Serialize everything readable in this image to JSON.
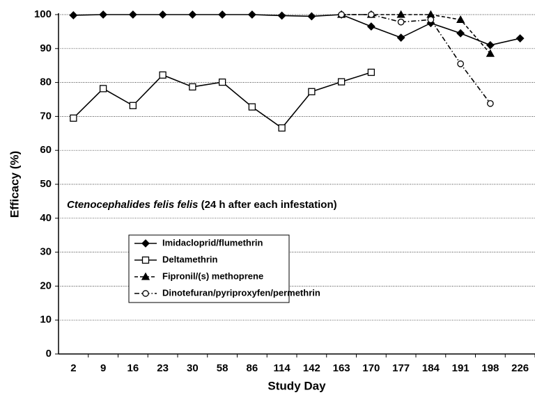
{
  "chart_data": {
    "type": "line",
    "categories": [
      "2",
      "9",
      "16",
      "23",
      "30",
      "58",
      "86",
      "114",
      "142",
      "163",
      "170",
      "177",
      "184",
      "191",
      "198",
      "226"
    ],
    "series": [
      {
        "name": "Imidacloprid/flumethrin",
        "color": "#000000",
        "marker": "diamond",
        "dash": "solid",
        "values": [
          99.8,
          100,
          100,
          100,
          100,
          100,
          100,
          99.7,
          99.5,
          100,
          96.5,
          93.2,
          97.5,
          94.5,
          91,
          93
        ]
      },
      {
        "name": "Deltamethrin",
        "color": "#000000",
        "marker": "square",
        "dash": "solid",
        "values": [
          69.5,
          78.2,
          73.2,
          82.2,
          78.7,
          80.1,
          72.8,
          66.6,
          77.3,
          80.2,
          83,
          null,
          null,
          null,
          null,
          null
        ]
      },
      {
        "name": "Fipronil/(s) methoprene",
        "color": "#000000",
        "marker": "triangle",
        "dash": "dashed",
        "values": [
          null,
          null,
          null,
          null,
          null,
          null,
          null,
          null,
          null,
          100,
          100,
          100,
          100,
          98.5,
          88.5,
          null
        ]
      },
      {
        "name": "Dinotefuran/pyriproxyfen/permethrin",
        "color": "#000000",
        "marker": "circle",
        "dash": "dashdot",
        "values": [
          null,
          null,
          null,
          null,
          null,
          null,
          null,
          null,
          null,
          100,
          100,
          97.8,
          98.5,
          85.5,
          73.8,
          null
        ]
      }
    ],
    "ylim": [
      0,
      100
    ],
    "yticks": [
      0,
      10,
      20,
      30,
      40,
      50,
      60,
      70,
      80,
      90,
      100
    ],
    "grid": true,
    "xlabel": "Study Day",
    "ylabel": "Efficacy (%)",
    "annotation": {
      "italic": "Ctenocephalides felis felis",
      "text": " (24 h after each infestation)"
    }
  }
}
